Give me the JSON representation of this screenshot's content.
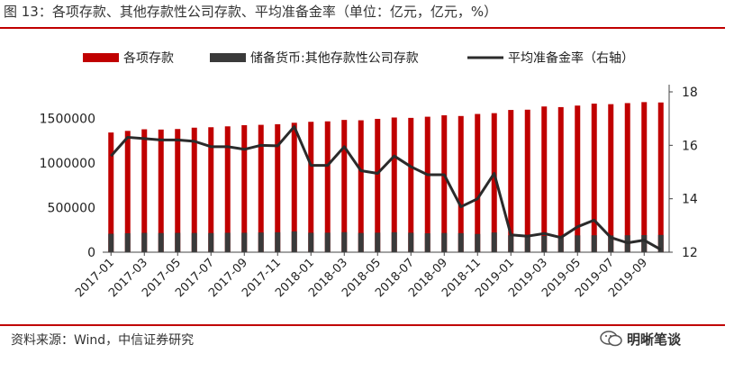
{
  "header": {
    "title": "图 13：各项存款、其他存款性公司存款、平均准备金率（单位：亿元，亿元，%）"
  },
  "footer": {
    "source": "资料来源：Wind，中信证券研究",
    "brand": "明晰笔谈"
  },
  "colors": {
    "rule": "#c00000",
    "bar_total": "#c00000",
    "bar_other": "#3a3a3a",
    "line": "#2b2b2b"
  },
  "chart_data": {
    "type": "bar",
    "title": "",
    "legend_position": "top",
    "series": [
      {
        "name": "各项存款",
        "type": "bar",
        "axis": "left",
        "values": [
          1344000,
          1362000,
          1380000,
          1377000,
          1383000,
          1398000,
          1403000,
          1413000,
          1426000,
          1430000,
          1437000,
          1453000,
          1464000,
          1469000,
          1485000,
          1481000,
          1497000,
          1512000,
          1508000,
          1521000,
          1537000,
          1529000,
          1552000,
          1561000,
          1597000,
          1600000,
          1636000,
          1629000,
          1646000,
          1668000,
          1662000,
          1674000,
          1685000,
          1681000
        ]
      },
      {
        "name": "储备货币:其他存款性公司存款",
        "type": "bar",
        "axis": "left",
        "values": [
          207000,
          213000,
          217000,
          215000,
          217000,
          216000,
          215000,
          218000,
          218000,
          221000,
          224000,
          233000,
          218000,
          219000,
          225000,
          216000,
          219000,
          224000,
          218000,
          212000,
          216000,
          214000,
          205000,
          221000,
          190000,
          183000,
          184000,
          183000,
          189000,
          190000,
          188000,
          190000,
          192000,
          194000
        ]
      },
      {
        "name": "平均准备金率（右轴）",
        "type": "line",
        "axis": "right",
        "values": [
          15.6,
          16.3,
          16.25,
          16.2,
          16.2,
          16.15,
          15.95,
          15.95,
          15.85,
          16.0,
          15.98,
          16.7,
          15.25,
          15.25,
          15.95,
          15.05,
          14.95,
          15.6,
          15.2,
          14.9,
          14.9,
          13.7,
          14.0,
          14.95,
          12.65,
          12.6,
          12.7,
          12.55,
          12.95,
          13.2,
          12.55,
          12.35,
          12.45,
          12.1
        ]
      }
    ],
    "x": [
      "2017-01",
      "2017-02",
      "2017-03",
      "2017-04",
      "2017-05",
      "2017-06",
      "2017-07",
      "2017-08",
      "2017-09",
      "2017-10",
      "2017-11",
      "2017-12",
      "2018-01",
      "2018-02",
      "2018-03",
      "2018-04",
      "2018-05",
      "2018-06",
      "2018-07",
      "2018-08",
      "2018-09",
      "2018-10",
      "2018-11",
      "2018-12",
      "2019-01",
      "2019-02",
      "2019-03",
      "2019-04",
      "2019-05",
      "2019-06",
      "2019-07",
      "2019-08",
      "2019-09",
      "2019-10"
    ],
    "x_tick_labels": [
      "2017-01",
      "2017-03",
      "2017-05",
      "2017-07",
      "2017-09",
      "2017-11",
      "2018-01",
      "2018-03",
      "2018-05",
      "2018-07",
      "2018-09",
      "2018-11",
      "2019-01",
      "2019-03",
      "2019-05",
      "2019-07",
      "2019-09"
    ],
    "y_left": {
      "lim": [
        0,
        1800000
      ],
      "ticks": [
        0,
        500000,
        1000000,
        1500000
      ],
      "labels": [
        "0",
        "500000",
        "1000000",
        "1500000"
      ]
    },
    "y_right": {
      "lim": [
        12,
        18
      ],
      "ticks": [
        12,
        14,
        16,
        18
      ],
      "labels": [
        "12",
        "14",
        "16",
        "18"
      ]
    },
    "grid": false
  }
}
